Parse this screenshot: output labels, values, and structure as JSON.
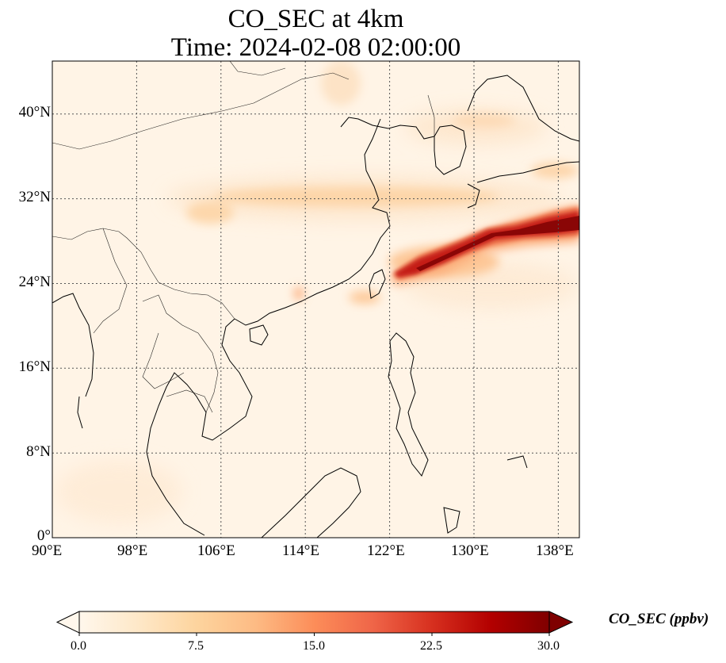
{
  "title": {
    "line1": "CO_SEC at 4km",
    "line2": "Time: 2024-02-08 02:00:00"
  },
  "map": {
    "lon_range": [
      90,
      140
    ],
    "lat_range": [
      0,
      45
    ],
    "lon_ticks": [
      "90°E",
      "98°E",
      "106°E",
      "114°E",
      "122°E",
      "130°E",
      "138°E"
    ],
    "lat_ticks": [
      "0°",
      "8°N",
      "16°N",
      "24°N",
      "32°N",
      "40°N"
    ],
    "gridlines": "dotted",
    "background_color": "#fff5eb"
  },
  "colorbar": {
    "label": "CO_SEC (ppbv)",
    "ticks": [
      "0.0",
      "7.5",
      "15.0",
      "22.5",
      "30.0"
    ],
    "range": [
      0,
      30
    ],
    "extend": "both",
    "colormap": "OrRd",
    "colors": [
      "#fff7ec",
      "#fee8c8",
      "#fdd49e",
      "#fdbb84",
      "#fc8d59",
      "#ef6548",
      "#d7301f",
      "#b30000",
      "#7f0000"
    ]
  },
  "plumes": [
    {
      "name": "east-china-sea-high-plume",
      "level": "high (up to ~30 ppbv)"
    },
    {
      "name": "yellow-sea-moderate-band",
      "level": "low-moderate (~5-8 ppbv)"
    },
    {
      "name": "sichuan-basin-patch",
      "level": "low (~4-6 ppbv)"
    },
    {
      "name": "north-china-plume",
      "level": "low (~3-5 ppbv)"
    }
  ]
}
